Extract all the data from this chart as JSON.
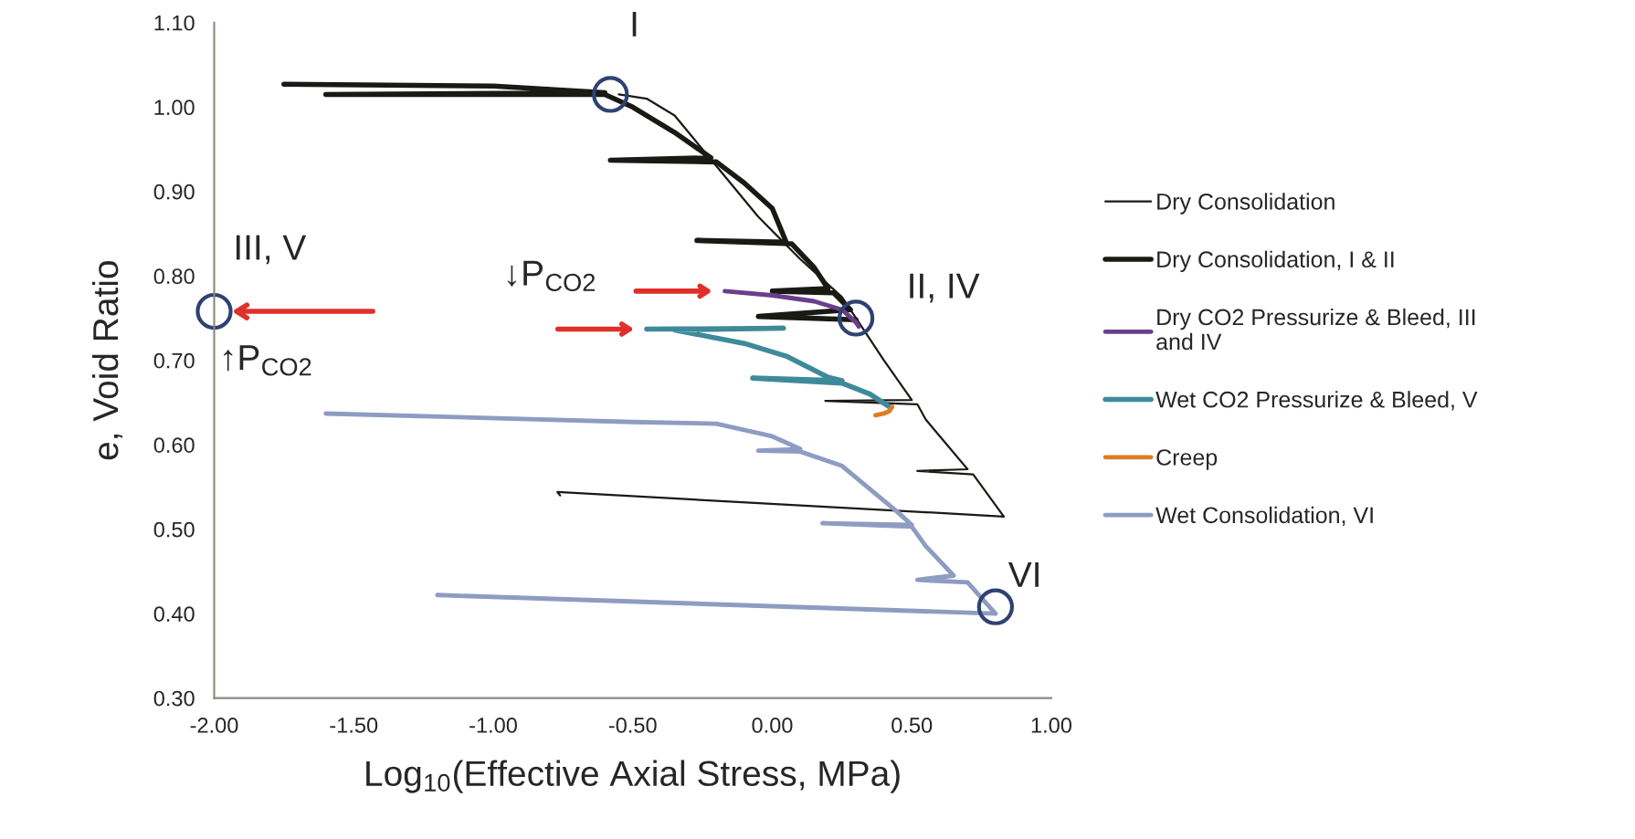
{
  "chart_data": {
    "type": "line",
    "xlabel": "Log$_{10}$(Effective Axial Stress, MPa)",
    "ylabel": "e, Void Ratio",
    "xlim": [
      -2.0,
      1.0
    ],
    "xticks": [
      {
        "value": -2.0,
        "label": "-2.00"
      },
      {
        "value": -1.5,
        "label": "-1.50"
      },
      {
        "value": -1.0,
        "label": "-1.00"
      },
      {
        "value": -0.5,
        "label": "-0.50"
      },
      {
        "value": 0.0,
        "label": "0.00"
      },
      {
        "value": 0.5,
        "label": "0.50"
      },
      {
        "value": 1.0,
        "label": "1.00"
      }
    ],
    "ylim": [
      0.3,
      1.1
    ],
    "yticks": [
      {
        "value": 0.3,
        "label": "0.30"
      },
      {
        "value": 0.4,
        "label": "0.40"
      },
      {
        "value": 0.5,
        "label": "0.50"
      },
      {
        "value": 0.6,
        "label": "0.60"
      },
      {
        "value": 0.7,
        "label": "0.70"
      },
      {
        "value": 0.8,
        "label": "0.80"
      },
      {
        "value": 0.9,
        "label": "0.90"
      },
      {
        "value": 1.0,
        "label": "1.00"
      },
      {
        "value": 1.1,
        "label": "1.10"
      }
    ],
    "grid": false,
    "legend": "right",
    "marker": "none",
    "line_style": "solid",
    "series": [
      {
        "name": "Dry Consolidation",
        "color": "#1a1a14",
        "x": [
          -0.55,
          -0.45,
          -0.35,
          -0.2,
          -0.05,
          0.1,
          0.25,
          0.3,
          0.4,
          0.5,
          0.19,
          0.52,
          0.55,
          0.7,
          0.52,
          0.72,
          0.83,
          -0.77,
          -0.76
        ],
        "values": [
          1.015,
          1.01,
          0.99,
          0.93,
          0.87,
          0.82,
          0.775,
          0.75,
          0.7,
          0.653,
          0.652,
          0.648,
          0.63,
          0.571,
          0.569,
          0.565,
          0.515,
          0.544,
          0.54
        ]
      },
      {
        "name": "Dry Consolidation, I & II",
        "color": "#1a1a14",
        "x": [
          -1.75,
          -1.0,
          -0.6,
          -1.6,
          -0.6,
          -0.5,
          -0.35,
          -0.22,
          -0.58,
          -0.2,
          -0.1,
          0.0,
          0.05,
          -0.27,
          0.07,
          0.15,
          0.2,
          0.0,
          0.22,
          0.28,
          -0.05,
          0.3
        ],
        "values": [
          1.027,
          1.025,
          1.017,
          1.015,
          1.015,
          1.0,
          0.97,
          0.94,
          0.937,
          0.935,
          0.91,
          0.88,
          0.84,
          0.842,
          0.838,
          0.81,
          0.785,
          0.782,
          0.78,
          0.76,
          0.752,
          0.748
        ]
      },
      {
        "name": "Dry CO2 Pressurize & Bleed, III\nand IV",
        "color": "#6a3f8a",
        "x": [
          -0.17,
          0.0,
          0.15,
          0.25,
          0.3,
          0.31
        ],
        "values": [
          0.782,
          0.777,
          0.77,
          0.76,
          0.745,
          0.74
        ]
      },
      {
        "name": "Wet CO2 Pressurize & Bleed, V",
        "color": "#3f8a9a",
        "x": [
          -0.45,
          0.04,
          -0.35,
          -0.1,
          0.05,
          0.2,
          0.25,
          -0.07,
          0.25,
          0.35,
          0.42
        ],
        "values": [
          0.737,
          0.738,
          0.736,
          0.72,
          0.705,
          0.68,
          0.676,
          0.679,
          0.673,
          0.66,
          0.645
        ]
      },
      {
        "name": "Creep",
        "color": "#e07b24",
        "x": [
          0.37,
          0.4,
          0.42,
          0.43
        ],
        "values": [
          0.635,
          0.637,
          0.64,
          0.645
        ]
      },
      {
        "name": "Wet Consolidation, VI",
        "color": "#8e9cc2",
        "x": [
          -1.6,
          -0.5,
          -0.2,
          0.0,
          0.1,
          -0.05,
          0.1,
          0.25,
          0.45,
          0.5,
          0.18,
          0.5,
          0.55,
          0.65,
          0.52,
          0.7,
          0.8,
          -1.2
        ],
        "values": [
          0.637,
          0.627,
          0.625,
          0.61,
          0.595,
          0.593,
          0.592,
          0.575,
          0.52,
          0.505,
          0.507,
          0.503,
          0.48,
          0.445,
          0.44,
          0.437,
          0.4,
          0.422
        ]
      }
    ],
    "annotations": [
      {
        "text": "I",
        "x": -0.58,
        "y": 1.015
      },
      {
        "text": "II, IV",
        "x": 0.3,
        "y": 0.75
      },
      {
        "text": "III, V",
        "x": -2.0,
        "y": 0.758
      },
      {
        "text": "VI",
        "x": 0.8,
        "y": 0.408
      },
      "↑P$_{CO2}$",
      "↓P$_{CO2}$"
    ]
  }
}
